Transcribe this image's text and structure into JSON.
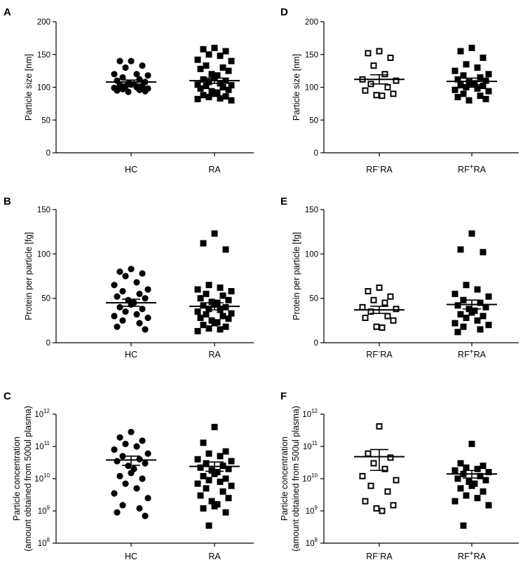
{
  "chart_data": [
    {
      "id": "A",
      "panel_label": "A",
      "type": "scatter",
      "yscale": "linear",
      "ylabel": "Particle size [nm]",
      "ylim": [
        0,
        200
      ],
      "yticks": [
        0,
        50,
        100,
        150,
        200
      ],
      "ytick_labels": [
        "0",
        "50",
        "100",
        "150",
        "200"
      ],
      "categories": [
        {
          "label": "HC"
        },
        {
          "label": "RA"
        }
      ],
      "series": [
        {
          "name": "HC",
          "marker": "filled-circle",
          "mean": 108,
          "sem": 3,
          "values": [
            140,
            140,
            133,
            130,
            120,
            120,
            118,
            115,
            112,
            110,
            108,
            106,
            105,
            104,
            103,
            102,
            101,
            100,
            99,
            98,
            97,
            96,
            95,
            94,
            93
          ]
        },
        {
          "name": "RA",
          "marker": "filled-square",
          "mean": 110,
          "sem": 4,
          "values": [
            160,
            158,
            155,
            150,
            148,
            142,
            140,
            133,
            130,
            128,
            125,
            120,
            118,
            115,
            112,
            110,
            108,
            106,
            104,
            103,
            102,
            100,
            98,
            96,
            94,
            92,
            90,
            88,
            86,
            85,
            83,
            82,
            80
          ]
        }
      ]
    },
    {
      "id": "B",
      "panel_label": "B",
      "type": "scatter",
      "yscale": "linear",
      "ylabel": "Protein per particle [fg]",
      "ylim": [
        0,
        150
      ],
      "yticks": [
        0,
        50,
        100,
        150
      ],
      "ytick_labels": [
        "0",
        "50",
        "100",
        "150"
      ],
      "categories": [
        {
          "label": "HC"
        },
        {
          "label": "RA"
        }
      ],
      "series": [
        {
          "name": "HC",
          "marker": "filled-circle",
          "mean": 45,
          "sem": 4,
          "values": [
            83,
            80,
            78,
            75,
            68,
            65,
            60,
            58,
            55,
            52,
            50,
            48,
            45,
            43,
            40,
            38,
            35,
            32,
            30,
            28,
            25,
            22,
            18,
            15
          ]
        },
        {
          "name": "RA",
          "marker": "filled-square",
          "mean": 41,
          "sem": 4,
          "values": [
            123,
            112,
            105,
            65,
            62,
            60,
            58,
            55,
            53,
            50,
            48,
            46,
            45,
            43,
            42,
            40,
            38,
            37,
            35,
            33,
            32,
            30,
            28,
            27,
            25,
            23,
            22,
            20,
            18,
            16,
            15,
            13
          ]
        }
      ]
    },
    {
      "id": "C",
      "panel_label": "C",
      "type": "scatter",
      "yscale": "log",
      "ylabel": "Particle concentration",
      "ylabel2": "(amount obtained from 500ul plasma)",
      "ylim": [
        100000000,
        1000000000000
      ],
      "ytick_base": "10",
      "ytick_exponents": [
        "8",
        "9",
        "10",
        "11",
        "12"
      ],
      "categories": [
        {
          "label": "HC"
        },
        {
          "label": "RA"
        }
      ],
      "series": [
        {
          "name": "HC",
          "marker": "filled-circle",
          "mean": 38000000000,
          "err_lo": 26000000000,
          "err_hi": 50000000000,
          "values": [
            280000000000,
            190000000000,
            150000000000,
            120000000000,
            100000000000,
            80000000000,
            60000000000,
            50000000000,
            40000000000,
            35000000000,
            30000000000,
            25000000000,
            20000000000,
            15000000000,
            12000000000,
            10000000000,
            7000000000,
            5000000000,
            3500000000,
            2500000000,
            1500000000,
            1200000000,
            900000000,
            700000000
          ]
        },
        {
          "name": "RA",
          "marker": "filled-square",
          "mean": 24000000000,
          "err_lo": 17000000000,
          "err_hi": 33000000000,
          "values": [
            400000000000,
            130000000000,
            70000000000,
            60000000000,
            50000000000,
            40000000000,
            35000000000,
            30000000000,
            25000000000,
            22000000000,
            20000000000,
            18000000000,
            16000000000,
            14000000000,
            12000000000,
            10000000000,
            9000000000,
            8000000000,
            7000000000,
            6000000000,
            5000000000,
            4000000000,
            3000000000,
            2500000000,
            2000000000,
            1600000000,
            1400000000,
            1200000000,
            900000000,
            350000000
          ]
        }
      ]
    },
    {
      "id": "D",
      "panel_label": "D",
      "type": "scatter",
      "yscale": "linear",
      "ylabel": "Particle size [nm]",
      "ylim": [
        0,
        200
      ],
      "yticks": [
        0,
        50,
        100,
        150,
        200
      ],
      "ytick_labels": [
        "0",
        "50",
        "100",
        "150",
        "200"
      ],
      "categories": [
        {
          "label": "RF",
          "sup": "-",
          "suffix": "RA"
        },
        {
          "label": "RF",
          "sup": "+",
          "suffix": "RA"
        }
      ],
      "series": [
        {
          "name": "RF-RA",
          "marker": "open-square",
          "mean": 112,
          "sem": 7,
          "values": [
            155,
            152,
            145,
            133,
            120,
            112,
            110,
            105,
            100,
            95,
            90,
            88,
            87
          ]
        },
        {
          "name": "RF+RA",
          "marker": "filled-square",
          "mean": 109,
          "sem": 5,
          "values": [
            160,
            155,
            145,
            135,
            130,
            125,
            120,
            118,
            115,
            112,
            110,
            108,
            106,
            104,
            103,
            102,
            100,
            98,
            96,
            94,
            90,
            87,
            85,
            82,
            80
          ]
        }
      ]
    },
    {
      "id": "E",
      "panel_label": "E",
      "type": "scatter",
      "yscale": "linear",
      "ylabel": "Protein per particle [fg]",
      "ylim": [
        0,
        150
      ],
      "yticks": [
        0,
        50,
        100,
        150
      ],
      "ytick_labels": [
        "0",
        "50",
        "100",
        "150"
      ],
      "categories": [
        {
          "label": "RF",
          "sup": "-",
          "suffix": "RA"
        },
        {
          "label": "RF",
          "sup": "+",
          "suffix": "RA"
        }
      ],
      "series": [
        {
          "name": "RF-RA",
          "marker": "open-square",
          "mean": 37,
          "sem": 4,
          "values": [
            62,
            58,
            52,
            48,
            45,
            40,
            38,
            35,
            30,
            28,
            25,
            18,
            17
          ]
        },
        {
          "name": "RF+RA",
          "marker": "filled-square",
          "mean": 43,
          "sem": 5,
          "values": [
            123,
            105,
            102,
            65,
            60,
            55,
            52,
            48,
            45,
            42,
            40,
            38,
            36,
            34,
            32,
            30,
            28,
            25,
            22,
            20,
            18,
            15,
            12
          ]
        }
      ]
    },
    {
      "id": "F",
      "panel_label": "F",
      "type": "scatter",
      "yscale": "log",
      "ylabel": "Particle concentration",
      "ylabel2": "(amount obtained from 500ul plasma)",
      "ylim": [
        100000000,
        1000000000000
      ],
      "ytick_base": "10",
      "ytick_exponents": [
        "8",
        "9",
        "10",
        "11",
        "12"
      ],
      "categories": [
        {
          "label": "RF",
          "sup": "-",
          "suffix": "RA"
        },
        {
          "label": "RF",
          "sup": "+",
          "suffix": "RA"
        }
      ],
      "series": [
        {
          "name": "RF-RA",
          "marker": "open-square",
          "mean": 48000000000,
          "err_lo": 18000000000,
          "err_hi": 80000000000,
          "values": [
            420000000000,
            60000000000,
            45000000000,
            30000000000,
            20000000000,
            12000000000,
            9000000000,
            6000000000,
            4000000000,
            2000000000,
            1500000000,
            1200000000,
            1000000000
          ]
        },
        {
          "name": "RF+RA",
          "marker": "filled-square",
          "mean": 14000000000,
          "err_lo": 10500000000,
          "err_hi": 18000000000,
          "values": [
            120000000000,
            30000000000,
            25000000000,
            22000000000,
            20000000000,
            18000000000,
            16000000000,
            14000000000,
            12000000000,
            10000000000,
            9000000000,
            8000000000,
            7000000000,
            6000000000,
            5000000000,
            4000000000,
            3000000000,
            2500000000,
            2000000000,
            1500000000,
            350000000
          ]
        }
      ]
    }
  ]
}
